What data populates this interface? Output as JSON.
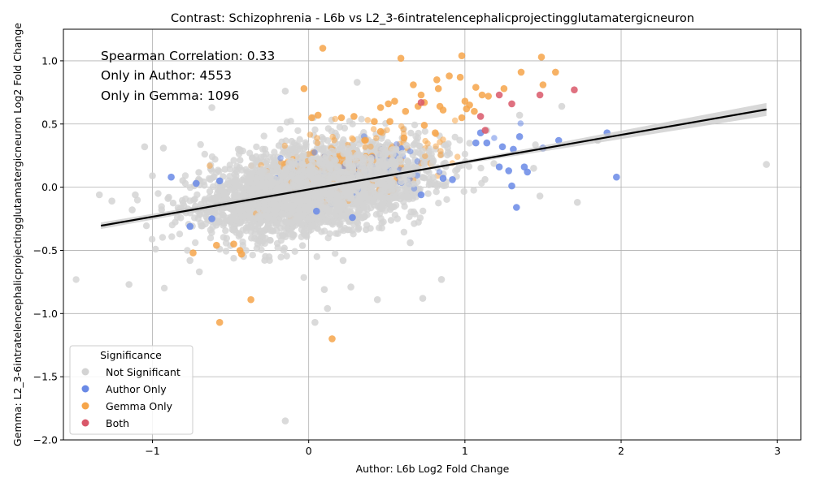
{
  "chart_data": {
    "type": "scatter",
    "title": "Contrast: Schizophrenia - L6b vs L2_3-6intratelencephalicprojectingglutamatergicneuron",
    "xlabel": "Author: L6b Log2 Fold Change",
    "ylabel": "Gemma: L2_3-6intratelencephalicprojectingglutamatergicneuron Log2 Fold Change",
    "xlim": [
      -1.57,
      3.15
    ],
    "ylim": [
      -2.0,
      1.25
    ],
    "xticks": [
      -1,
      0,
      1,
      2,
      3
    ],
    "xtick_labels": [
      "−1",
      "0",
      "1",
      "2",
      "3"
    ],
    "yticks": [
      -2.0,
      -1.5,
      -1.0,
      -0.5,
      0.0,
      0.5,
      1.0
    ],
    "ytick_labels": [
      "−2.0",
      "−1.5",
      "−1.0",
      "−0.5",
      "0.0",
      "0.5",
      "1.0"
    ],
    "grid": true,
    "annotations": [
      "Spearman Correlation: 0.33",
      "Only in Author: 4553",
      "Only in Gemma: 1096"
    ],
    "regression": {
      "x": [
        -1.33,
        2.93
      ],
      "y": [
        -0.305,
        0.615
      ]
    },
    "legend": {
      "title": "Significance",
      "position": "lower-left",
      "entries": [
        "Not Significant",
        "Author Only",
        "Gemma Only",
        "Both"
      ]
    },
    "series": [
      {
        "name": "Not Significant",
        "color": "#d3d3d3",
        "points": [
          [
            -1.34,
            -0.06
          ],
          [
            -1.26,
            -0.11
          ],
          [
            -1.11,
            -0.06
          ],
          [
            -1.13,
            -0.18
          ],
          [
            -1.05,
            0.32
          ],
          [
            -0.93,
            0.31
          ],
          [
            -1.0,
            0.09
          ],
          [
            -0.9,
            -0.09
          ],
          [
            -0.82,
            -0.17
          ],
          [
            -0.76,
            -0.58
          ],
          [
            -0.7,
            -0.67
          ],
          [
            -0.62,
            0.63
          ],
          [
            -0.57,
            -0.49
          ],
          [
            -1.15,
            -0.77
          ],
          [
            -0.15,
            -1.85
          ],
          [
            0.12,
            -0.96
          ],
          [
            0.1,
            -0.81
          ],
          [
            0.04,
            -1.07
          ],
          [
            0.27,
            -0.79
          ],
          [
            0.44,
            -0.89
          ],
          [
            0.73,
            -0.88
          ],
          [
            0.85,
            -0.73
          ],
          [
            1.14,
            0.45
          ],
          [
            1.35,
            0.57
          ],
          [
            1.44,
            0.15
          ],
          [
            1.62,
            0.64
          ],
          [
            1.72,
            -0.12
          ],
          [
            2.93,
            0.18
          ],
          [
            1.85,
            0.37
          ],
          [
            1.48,
            -0.07
          ],
          [
            -0.45,
            0.3
          ],
          [
            0.03,
            0.55
          ],
          [
            0.31,
            0.83
          ],
          [
            -0.15,
            0.76
          ],
          [
            0.22,
            -0.58
          ],
          [
            0.65,
            -0.44
          ]
        ]
      },
      {
        "name": "Author Only",
        "color": "#6a8ae6",
        "points": [
          [
            -0.88,
            0.08
          ],
          [
            -0.76,
            -0.31
          ],
          [
            -0.72,
            0.03
          ],
          [
            -0.62,
            -0.25
          ],
          [
            -0.57,
            0.05
          ],
          [
            0.05,
            -0.19
          ],
          [
            0.28,
            -0.24
          ],
          [
            0.72,
            -0.06
          ],
          [
            0.86,
            0.07
          ],
          [
            0.92,
            0.06
          ],
          [
            1.07,
            0.35
          ],
          [
            1.1,
            0.43
          ],
          [
            1.14,
            0.35
          ],
          [
            1.22,
            0.16
          ],
          [
            1.24,
            0.32
          ],
          [
            1.28,
            0.13
          ],
          [
            1.3,
            0.01
          ],
          [
            1.31,
            0.3
          ],
          [
            1.33,
            -0.16
          ],
          [
            1.35,
            0.4
          ],
          [
            1.38,
            0.16
          ],
          [
            1.4,
            0.12
          ],
          [
            1.5,
            0.31
          ],
          [
            1.6,
            0.37
          ],
          [
            1.91,
            0.43
          ],
          [
            1.97,
            0.08
          ]
        ]
      },
      {
        "name": "Gemma Only",
        "color": "#f6a54a",
        "points": [
          [
            0.09,
            1.1
          ],
          [
            0.59,
            1.02
          ],
          [
            -0.03,
            0.78
          ],
          [
            0.02,
            0.55
          ],
          [
            0.06,
            0.57
          ],
          [
            0.21,
            0.55
          ],
          [
            0.29,
            0.56
          ],
          [
            0.46,
            0.63
          ],
          [
            0.51,
            0.66
          ],
          [
            0.55,
            0.68
          ],
          [
            0.62,
            0.6
          ],
          [
            0.67,
            0.81
          ],
          [
            0.7,
            0.64
          ],
          [
            0.72,
            0.73
          ],
          [
            0.74,
            0.67
          ],
          [
            0.82,
            0.85
          ],
          [
            0.83,
            0.78
          ],
          [
            0.84,
            0.64
          ],
          [
            0.86,
            0.61
          ],
          [
            0.9,
            0.88
          ],
          [
            0.97,
            0.87
          ],
          [
            0.98,
            1.04
          ],
          [
            1.0,
            0.68
          ],
          [
            1.01,
            0.62
          ],
          [
            1.03,
            0.65
          ],
          [
            1.06,
            0.6
          ],
          [
            1.07,
            0.79
          ],
          [
            1.11,
            0.73
          ],
          [
            1.15,
            0.72
          ],
          [
            1.25,
            0.78
          ],
          [
            1.36,
            0.91
          ],
          [
            1.49,
            1.03
          ],
          [
            1.5,
            0.81
          ],
          [
            1.58,
            0.91
          ],
          [
            0.81,
            0.43
          ],
          [
            0.74,
            0.49
          ],
          [
            0.98,
            0.55
          ],
          [
            0.52,
            0.52
          ],
          [
            0.36,
            0.37
          ],
          [
            0.42,
            0.52
          ],
          [
            -0.74,
            -0.52
          ],
          [
            -0.59,
            -0.46
          ],
          [
            -0.48,
            -0.45
          ],
          [
            -0.44,
            -0.5
          ],
          [
            -0.43,
            -0.53
          ],
          [
            -0.57,
            -1.07
          ],
          [
            -0.37,
            -0.89
          ],
          [
            0.15,
            -1.2
          ],
          [
            0.46,
            0.44
          ],
          [
            0.61,
            0.39
          ]
        ]
      },
      {
        "name": "Both",
        "color": "#d9586a",
        "points": [
          [
            1.1,
            0.56
          ],
          [
            1.13,
            0.45
          ],
          [
            1.22,
            0.73
          ],
          [
            1.3,
            0.66
          ],
          [
            1.48,
            0.73
          ],
          [
            1.7,
            0.77
          ],
          [
            0.72,
            0.67
          ]
        ]
      }
    ]
  }
}
